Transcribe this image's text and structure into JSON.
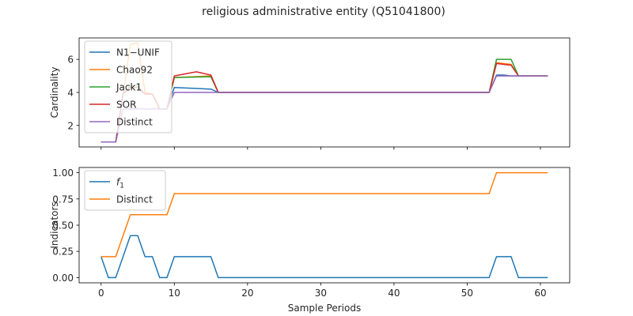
{
  "chart_data": [
    {
      "type": "line",
      "title": "religious administrative entity (Q51041800)",
      "xlabel": "",
      "ylabel": "Cardinality",
      "xlim": [
        -3,
        64
      ],
      "ylim": [
        0.7,
        7.3
      ],
      "yticks": [
        2,
        4,
        6
      ],
      "xticks": [
        0,
        10,
        20,
        30,
        40,
        50,
        60
      ],
      "show_xtick_labels": false,
      "legend_position": "upper-left",
      "grid": false,
      "series": [
        {
          "name": "N1−UNIF",
          "color": "#1f77b4",
          "x": [
            0,
            1,
            2,
            3,
            4,
            5,
            6,
            7,
            8,
            9,
            10,
            15,
            16,
            53,
            54,
            55,
            56,
            57,
            61
          ],
          "y": [
            1,
            1,
            1,
            3.9,
            4.3,
            4.3,
            3.9,
            3.9,
            3,
            3,
            4.3,
            4.2,
            4,
            4,
            5.05,
            5.05,
            5.0,
            5.0,
            5.0
          ]
        },
        {
          "name": "Chao92",
          "color": "#ff7f0e",
          "x": [
            0,
            1,
            2,
            3,
            4,
            5,
            6,
            7,
            8,
            9,
            10,
            15,
            16,
            53,
            54,
            55,
            56,
            57,
            61
          ],
          "y": [
            1,
            1,
            1,
            3.9,
            6.9,
            7.0,
            4.0,
            3.9,
            3,
            3,
            4.9,
            5.0,
            4,
            4,
            5.8,
            5.75,
            5.7,
            5.0,
            5.0
          ]
        },
        {
          "name": "Jack1",
          "color": "#2ca02c",
          "x": [
            0,
            1,
            2,
            3,
            4,
            5,
            6,
            7,
            8,
            9,
            10,
            15,
            16,
            53,
            54,
            55,
            56,
            57,
            61
          ],
          "y": [
            1,
            1,
            1,
            3.9,
            4.4,
            4.4,
            3.9,
            3.9,
            3,
            3,
            4.9,
            4.95,
            4,
            4,
            6.0,
            6.0,
            6.0,
            5.0,
            5.0
          ]
        },
        {
          "name": "SOR",
          "color": "#d62728",
          "x": [
            0,
            1,
            2,
            3,
            4,
            5,
            6,
            7,
            8,
            9,
            10,
            13,
            15,
            16,
            53,
            54,
            55,
            56,
            57,
            61
          ],
          "y": [
            1,
            1,
            1,
            3.9,
            4.3,
            4.3,
            3.9,
            3.9,
            3,
            3,
            5.0,
            5.25,
            5.05,
            4,
            4,
            5.75,
            5.7,
            5.65,
            5.0,
            5.0
          ]
        },
        {
          "name": "Distinct",
          "color": "#9467bd",
          "x": [
            0,
            1,
            2,
            3,
            4,
            5,
            6,
            7,
            8,
            9,
            10,
            15,
            16,
            53,
            54,
            55,
            56,
            57,
            61
          ],
          "y": [
            1,
            1,
            1,
            3,
            3,
            3,
            3,
            3,
            3,
            3,
            4,
            4,
            4,
            4,
            5,
            5,
            5,
            5,
            5
          ]
        }
      ]
    },
    {
      "type": "line",
      "title": "",
      "xlabel": "Sample Periods",
      "ylabel": "Indicators",
      "xlim": [
        -3,
        64
      ],
      "ylim": [
        -0.05,
        1.05
      ],
      "yticks": [
        0.0,
        0.25,
        0.5,
        0.75,
        1.0
      ],
      "ytick_labels": [
        "0.00",
        "0.25",
        "0.50",
        "0.75",
        "1.00"
      ],
      "xticks": [
        0,
        10,
        20,
        30,
        40,
        50,
        60
      ],
      "legend_position": "upper-left",
      "grid": false,
      "series": [
        {
          "name": "f1",
          "color": "#1f77b4",
          "x": [
            0,
            1,
            2,
            3,
            4,
            5,
            6,
            7,
            8,
            9,
            10,
            11,
            12,
            13,
            14,
            15,
            16,
            53,
            54,
            55,
            56,
            57,
            61
          ],
          "y": [
            0.2,
            0,
            0,
            0.2,
            0.4,
            0.4,
            0.2,
            0.2,
            0,
            0,
            0.2,
            0.2,
            0.2,
            0.2,
            0.2,
            0.2,
            0,
            0,
            0.2,
            0.2,
            0.2,
            0,
            0
          ]
        },
        {
          "name": "Distinct",
          "color": "#ff7f0e",
          "x": [
            0,
            1,
            2,
            3,
            4,
            5,
            6,
            7,
            8,
            9,
            10,
            53,
            54,
            61
          ],
          "y": [
            0.2,
            0.2,
            0.2,
            0.4,
            0.6,
            0.6,
            0.6,
            0.6,
            0.6,
            0.6,
            0.8,
            0.8,
            1.0,
            1.0
          ]
        }
      ]
    }
  ]
}
